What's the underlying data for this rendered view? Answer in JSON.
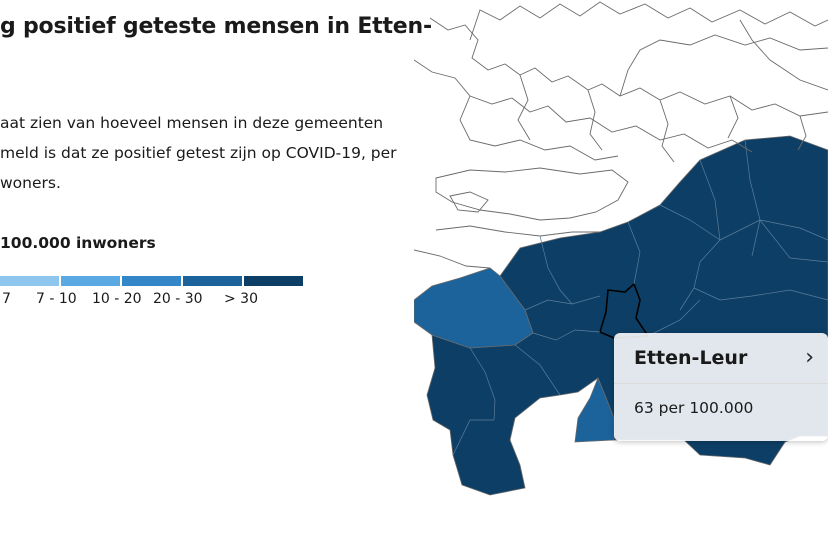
{
  "title": "g positief geteste mensen in Etten-",
  "description_lines": [
    "aat zien van hoeveel mensen in deze gemeenten",
    "meld is dat ze positief getest zijn op COVID-19, per",
    "woners."
  ],
  "legend": {
    "title": "100.000 inwoners",
    "labels": [
      "7",
      "7 - 10",
      "10 - 20",
      "20 - 30",
      "> 30"
    ],
    "colors": [
      "#8fc6ee",
      "#5aa9e3",
      "#3387c9",
      "#1c639b",
      "#0d3f66"
    ]
  },
  "map": {
    "colors": {
      "outline": "#6a6a6a",
      "highlight_stroke": "#000000",
      "top_class": "#0d3f66",
      "mid_class": "#1c639b"
    }
  },
  "tooltip": {
    "name": "Etten-Leur",
    "value": "63 per 100.000",
    "chevron": "›"
  }
}
